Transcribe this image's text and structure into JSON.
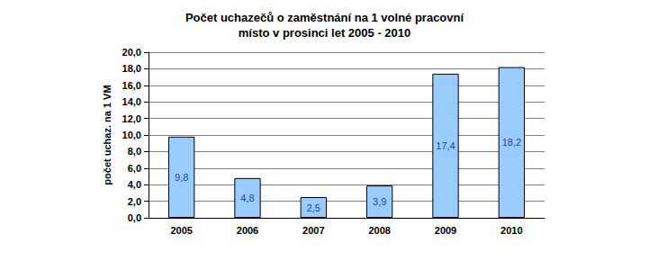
{
  "chart_data": {
    "type": "bar",
    "title": "Počet uchazečů o zaměstnání na 1 volné pracovní\nmísto v prosinci let 2005 - 2010",
    "y_label": "počet uchaz. na 1 VM",
    "categories": [
      "2005",
      "2006",
      "2007",
      "2008",
      "2009",
      "2010"
    ],
    "values": [
      9.8,
      4.8,
      2.5,
      3.9,
      17.4,
      18.2
    ],
    "value_labels": [
      "9,8",
      "4,8",
      "2,5",
      "3,9",
      "17,4",
      "18,2"
    ],
    "color": "#99ccff",
    "ylim": [
      0,
      20
    ],
    "yticks": [
      {
        "value": 0,
        "label": "0,0"
      },
      {
        "value": 2,
        "label": "2,0"
      },
      {
        "value": 4,
        "label": "4,0"
      },
      {
        "value": 6,
        "label": "6,0"
      },
      {
        "value": 8,
        "label": "8,0"
      },
      {
        "value": 10,
        "label": "10,0"
      },
      {
        "value": 12,
        "label": "12,0"
      },
      {
        "value": 14,
        "label": "14,0"
      },
      {
        "value": 16,
        "label": "16,0"
      },
      {
        "value": 18,
        "label": "18,0"
      },
      {
        "value": 20,
        "label": "20,0"
      }
    ],
    "grid": true,
    "data_labels": true
  }
}
